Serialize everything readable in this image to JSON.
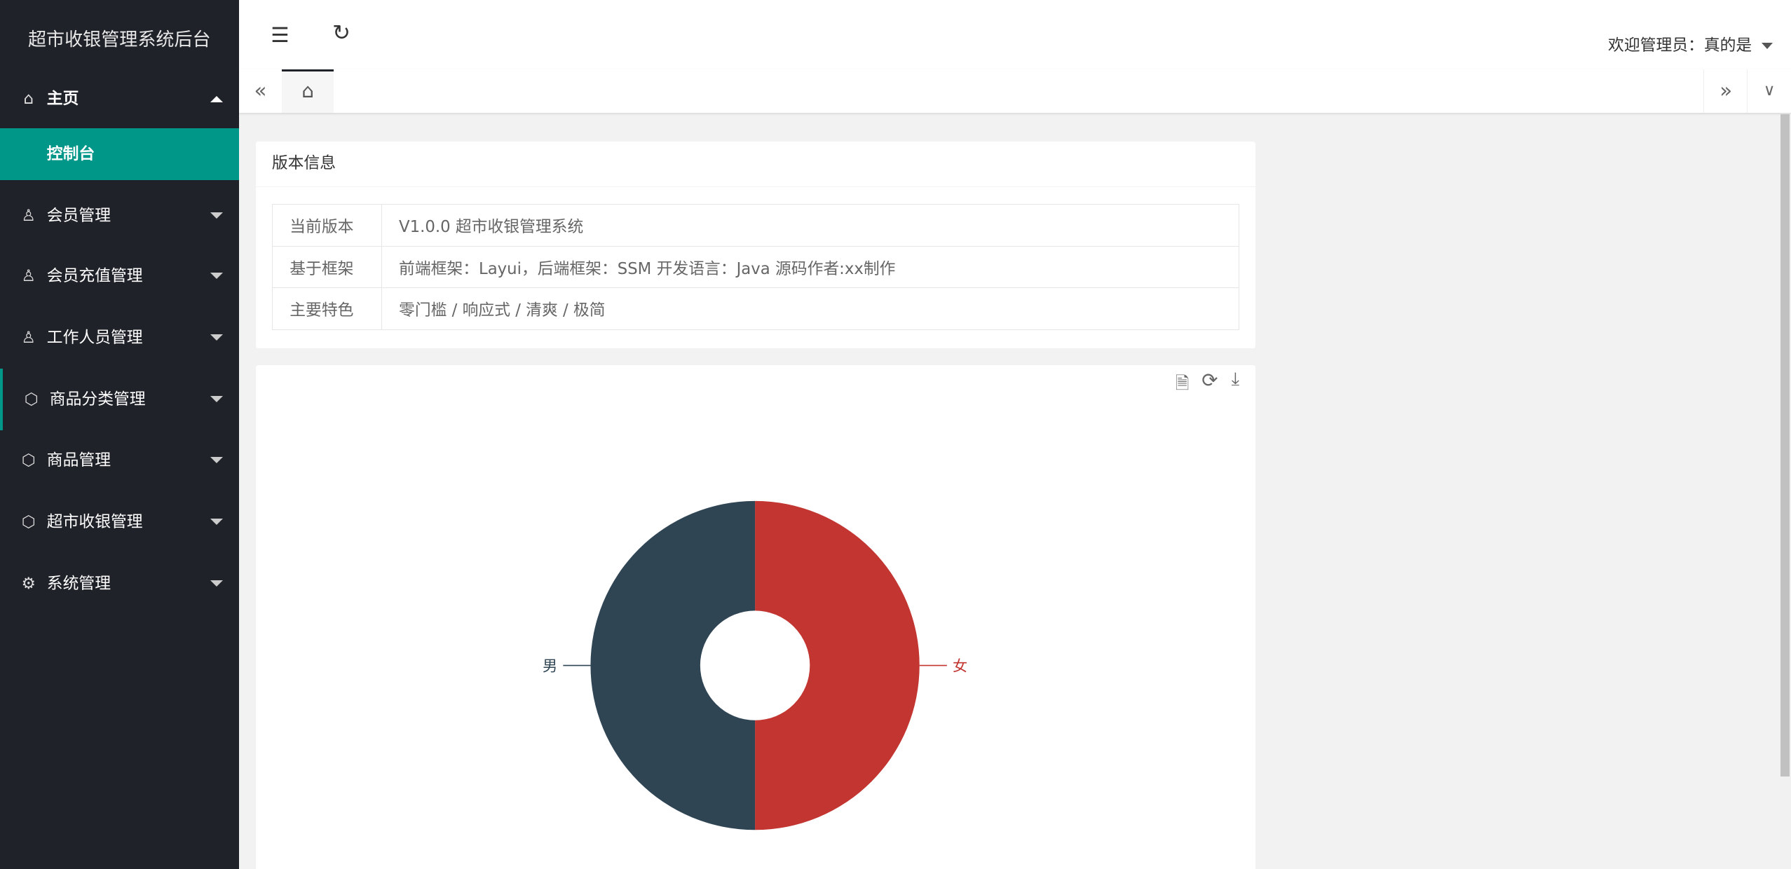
{
  "app_title": "超市收银管理系统后台",
  "sidebar": {
    "items": [
      {
        "label": "主页",
        "icon": "home-icon"
      },
      {
        "label": "控制台",
        "active": true
      },
      {
        "label": "会员管理",
        "icon": "user-icon"
      },
      {
        "label": "会员充值管理",
        "icon": "user-icon"
      },
      {
        "label": "工作人员管理",
        "icon": "user-icon"
      },
      {
        "label": "商品分类管理",
        "icon": "cube-icon"
      },
      {
        "label": "商品管理",
        "icon": "cube-icon"
      },
      {
        "label": "超市收银管理",
        "icon": "cube-icon"
      },
      {
        "label": "系统管理",
        "icon": "gear-icon"
      }
    ]
  },
  "header": {
    "welcome": "欢迎管理员：真的是"
  },
  "version_card": {
    "title": "版本信息",
    "rows": [
      {
        "key": "当前版本",
        "value": "V1.0.0 超市收银管理系统"
      },
      {
        "key": "基于框架",
        "value": "前端框架：Layui，后端框架：SSM 开发语言：Java 源码作者:xx制作"
      },
      {
        "key": "主要特色",
        "value": "零门槛 / 响应式 / 清爽 / 极简"
      }
    ]
  },
  "colors": {
    "accent": "#009688",
    "sidebar": "#20222a",
    "female": "#c23531",
    "male": "#2f4554"
  },
  "chart_data": {
    "type": "pie",
    "donut": true,
    "categories": [
      "女",
      "男"
    ],
    "values": [
      50,
      50
    ],
    "colors": [
      "#c23531",
      "#2f4554"
    ]
  }
}
